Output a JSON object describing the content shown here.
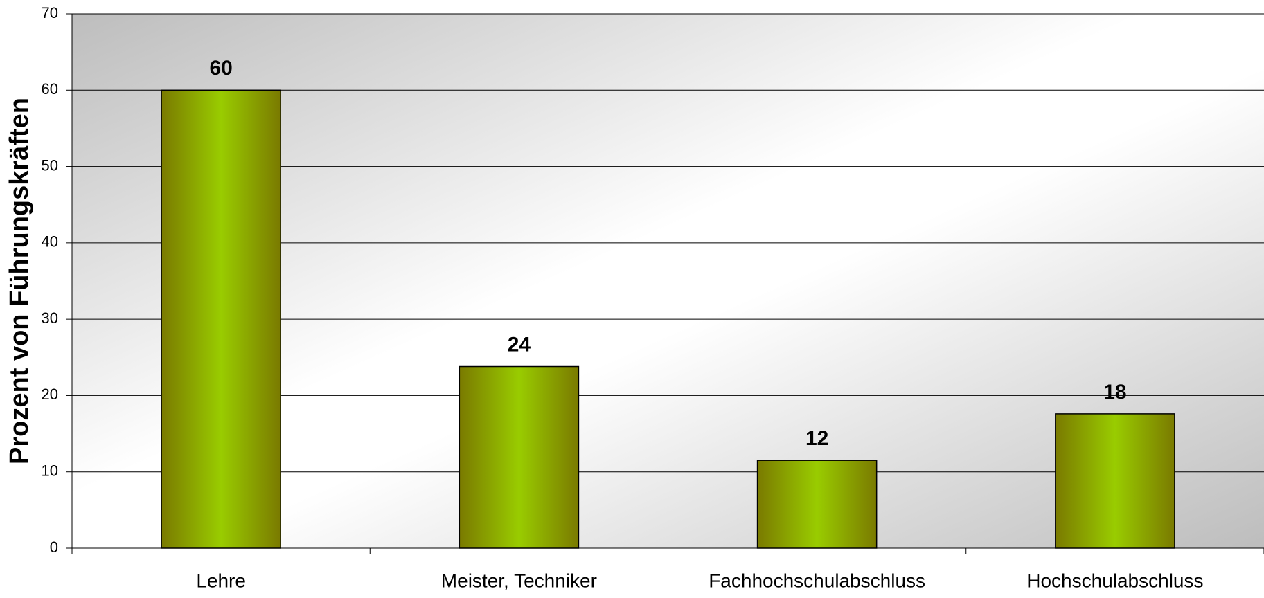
{
  "chart_data": {
    "type": "bar",
    "ylabel": "Prozent von Führungskräften",
    "categories": [
      "Lehre",
      "Meister, Techniker",
      "Fachhochschulabschluss",
      "Hochschulabschluss"
    ],
    "values": [
      60,
      23.8,
      11.5,
      17.6
    ],
    "value_labels": [
      "60",
      "24",
      "12",
      "18"
    ],
    "color": "#99cc00",
    "ylim": [
      0,
      70
    ],
    "yticks": [
      0,
      10,
      20,
      30,
      40,
      50,
      60,
      70
    ],
    "grid": true
  }
}
